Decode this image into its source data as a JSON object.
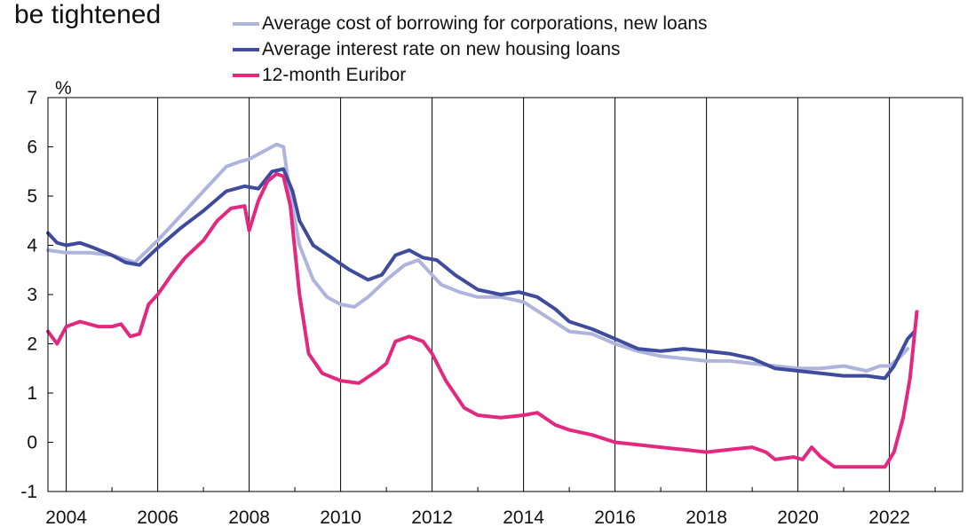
{
  "chart_data": {
    "type": "line",
    "title": "be tightened",
    "ylabel": "%",
    "xlabel": "",
    "xlim": [
      2003.6,
      2023.6
    ],
    "ylim": [
      -1,
      7
    ],
    "grid": "vertical",
    "legend_position": "top",
    "x_ticks": [
      "2004",
      "2006",
      "2008",
      "2010",
      "2012",
      "2014",
      "2016",
      "2018",
      "2020",
      "2022"
    ],
    "y_ticks": [
      "-1",
      "0",
      "1",
      "2",
      "3",
      "4",
      "5",
      "6",
      "7"
    ],
    "series": [
      {
        "name": "Average cost of borrowing for corporations, new loans",
        "color": "#aeb4dc",
        "points": [
          [
            2003.6,
            3.9
          ],
          [
            2004.0,
            3.85
          ],
          [
            2004.5,
            3.85
          ],
          [
            2005.0,
            3.8
          ],
          [
            2005.5,
            3.65
          ],
          [
            2006.0,
            4.1
          ],
          [
            2006.5,
            4.6
          ],
          [
            2007.0,
            5.1
          ],
          [
            2007.5,
            5.6
          ],
          [
            2007.8,
            5.7
          ],
          [
            2008.0,
            5.75
          ],
          [
            2008.3,
            5.9
          ],
          [
            2008.6,
            6.05
          ],
          [
            2008.75,
            6.0
          ],
          [
            2008.9,
            5.0
          ],
          [
            2009.1,
            4.0
          ],
          [
            2009.4,
            3.3
          ],
          [
            2009.7,
            2.95
          ],
          [
            2010.0,
            2.8
          ],
          [
            2010.3,
            2.75
          ],
          [
            2010.6,
            2.95
          ],
          [
            2011.0,
            3.3
          ],
          [
            2011.4,
            3.6
          ],
          [
            2011.7,
            3.7
          ],
          [
            2011.9,
            3.5
          ],
          [
            2012.2,
            3.2
          ],
          [
            2012.6,
            3.05
          ],
          [
            2013.0,
            2.95
          ],
          [
            2013.5,
            2.95
          ],
          [
            2014.0,
            2.85
          ],
          [
            2014.5,
            2.55
          ],
          [
            2015.0,
            2.25
          ],
          [
            2015.5,
            2.2
          ],
          [
            2016.0,
            2.0
          ],
          [
            2016.5,
            1.85
          ],
          [
            2017.0,
            1.75
          ],
          [
            2017.5,
            1.7
          ],
          [
            2018.0,
            1.65
          ],
          [
            2018.5,
            1.65
          ],
          [
            2019.0,
            1.6
          ],
          [
            2019.5,
            1.55
          ],
          [
            2020.0,
            1.5
          ],
          [
            2020.5,
            1.5
          ],
          [
            2021.0,
            1.55
          ],
          [
            2021.5,
            1.45
          ],
          [
            2021.8,
            1.55
          ],
          [
            2022.0,
            1.55
          ],
          [
            2022.2,
            1.7
          ],
          [
            2022.4,
            1.9
          ]
        ]
      },
      {
        "name": "Average interest rate on new housing loans",
        "color": "#3f4b9c",
        "points": [
          [
            2003.6,
            4.25
          ],
          [
            2003.8,
            4.05
          ],
          [
            2004.0,
            4.0
          ],
          [
            2004.3,
            4.05
          ],
          [
            2004.6,
            3.95
          ],
          [
            2005.0,
            3.8
          ],
          [
            2005.3,
            3.65
          ],
          [
            2005.6,
            3.6
          ],
          [
            2006.0,
            3.95
          ],
          [
            2006.5,
            4.35
          ],
          [
            2007.0,
            4.7
          ],
          [
            2007.5,
            5.1
          ],
          [
            2007.9,
            5.2
          ],
          [
            2008.2,
            5.15
          ],
          [
            2008.5,
            5.5
          ],
          [
            2008.75,
            5.55
          ],
          [
            2008.95,
            5.1
          ],
          [
            2009.1,
            4.5
          ],
          [
            2009.4,
            4.0
          ],
          [
            2009.8,
            3.75
          ],
          [
            2010.2,
            3.5
          ],
          [
            2010.6,
            3.3
          ],
          [
            2010.9,
            3.4
          ],
          [
            2011.2,
            3.8
          ],
          [
            2011.5,
            3.9
          ],
          [
            2011.8,
            3.75
          ],
          [
            2012.1,
            3.7
          ],
          [
            2012.5,
            3.4
          ],
          [
            2013.0,
            3.1
          ],
          [
            2013.5,
            3.0
          ],
          [
            2013.9,
            3.05
          ],
          [
            2014.3,
            2.95
          ],
          [
            2014.7,
            2.7
          ],
          [
            2015.0,
            2.45
          ],
          [
            2015.5,
            2.3
          ],
          [
            2016.0,
            2.1
          ],
          [
            2016.5,
            1.9
          ],
          [
            2017.0,
            1.85
          ],
          [
            2017.5,
            1.9
          ],
          [
            2018.0,
            1.85
          ],
          [
            2018.5,
            1.8
          ],
          [
            2019.0,
            1.7
          ],
          [
            2019.5,
            1.5
          ],
          [
            2020.0,
            1.45
          ],
          [
            2020.5,
            1.4
          ],
          [
            2021.0,
            1.35
          ],
          [
            2021.5,
            1.35
          ],
          [
            2021.9,
            1.3
          ],
          [
            2022.1,
            1.55
          ],
          [
            2022.4,
            2.1
          ],
          [
            2022.55,
            2.25
          ]
        ]
      },
      {
        "name": "12-month Euribor",
        "color": "#e2287f",
        "points": [
          [
            2003.6,
            2.25
          ],
          [
            2003.8,
            2.0
          ],
          [
            2004.0,
            2.35
          ],
          [
            2004.3,
            2.45
          ],
          [
            2004.7,
            2.35
          ],
          [
            2005.0,
            2.35
          ],
          [
            2005.2,
            2.4
          ],
          [
            2005.4,
            2.15
          ],
          [
            2005.6,
            2.2
          ],
          [
            2005.8,
            2.8
          ],
          [
            2006.0,
            3.0
          ],
          [
            2006.3,
            3.4
          ],
          [
            2006.6,
            3.75
          ],
          [
            2007.0,
            4.1
          ],
          [
            2007.3,
            4.5
          ],
          [
            2007.6,
            4.75
          ],
          [
            2007.9,
            4.8
          ],
          [
            2008.0,
            4.3
          ],
          [
            2008.2,
            4.9
          ],
          [
            2008.4,
            5.3
          ],
          [
            2008.6,
            5.45
          ],
          [
            2008.75,
            5.4
          ],
          [
            2008.9,
            4.8
          ],
          [
            2009.1,
            3.0
          ],
          [
            2009.3,
            1.8
          ],
          [
            2009.6,
            1.4
          ],
          [
            2010.0,
            1.25
          ],
          [
            2010.4,
            1.2
          ],
          [
            2010.8,
            1.45
          ],
          [
            2011.0,
            1.6
          ],
          [
            2011.2,
            2.05
          ],
          [
            2011.5,
            2.15
          ],
          [
            2011.8,
            2.05
          ],
          [
            2012.0,
            1.8
          ],
          [
            2012.3,
            1.25
          ],
          [
            2012.7,
            0.7
          ],
          [
            2013.0,
            0.55
          ],
          [
            2013.5,
            0.5
          ],
          [
            2014.0,
            0.55
          ],
          [
            2014.3,
            0.6
          ],
          [
            2014.7,
            0.35
          ],
          [
            2015.0,
            0.25
          ],
          [
            2015.5,
            0.15
          ],
          [
            2016.0,
            0.0
          ],
          [
            2016.5,
            -0.05
          ],
          [
            2017.0,
            -0.1
          ],
          [
            2017.5,
            -0.15
          ],
          [
            2018.0,
            -0.2
          ],
          [
            2018.5,
            -0.15
          ],
          [
            2019.0,
            -0.1
          ],
          [
            2019.3,
            -0.2
          ],
          [
            2019.5,
            -0.35
          ],
          [
            2019.9,
            -0.3
          ],
          [
            2020.1,
            -0.35
          ],
          [
            2020.3,
            -0.1
          ],
          [
            2020.5,
            -0.3
          ],
          [
            2020.8,
            -0.5
          ],
          [
            2021.2,
            -0.5
          ],
          [
            2021.6,
            -0.5
          ],
          [
            2021.9,
            -0.5
          ],
          [
            2022.1,
            -0.2
          ],
          [
            2022.3,
            0.5
          ],
          [
            2022.45,
            1.3
          ],
          [
            2022.6,
            2.65
          ]
        ]
      }
    ]
  }
}
